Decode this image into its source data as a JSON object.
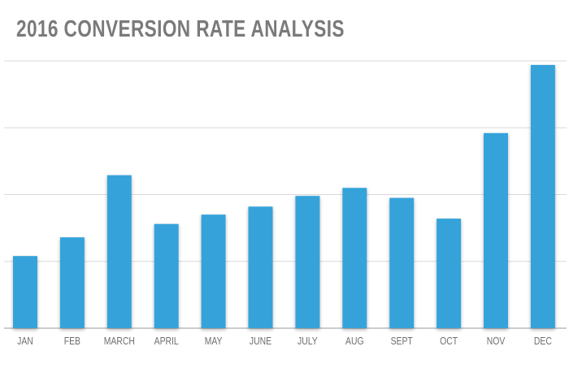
{
  "chart_data": {
    "type": "bar",
    "title": "2016 CONVERSION RATE ANALYSIS",
    "xlabel": "",
    "ylabel": "",
    "categories": [
      "JAN",
      "FEB",
      "MARCH",
      "APRIL",
      "MAY",
      "JUNE",
      "JULY",
      "AUG",
      "SEPT",
      "OCT",
      "NOV",
      "DEC"
    ],
    "values": [
      1.08,
      1.36,
      2.29,
      1.56,
      1.7,
      1.82,
      1.98,
      2.1,
      1.95,
      1.64,
      2.92,
      3.94
    ],
    "ylim": [
      0,
      4
    ],
    "grid": true,
    "y_ticks_labeled": false,
    "bar_color": "#35a3da",
    "grid_color": "#d9d9d9"
  }
}
